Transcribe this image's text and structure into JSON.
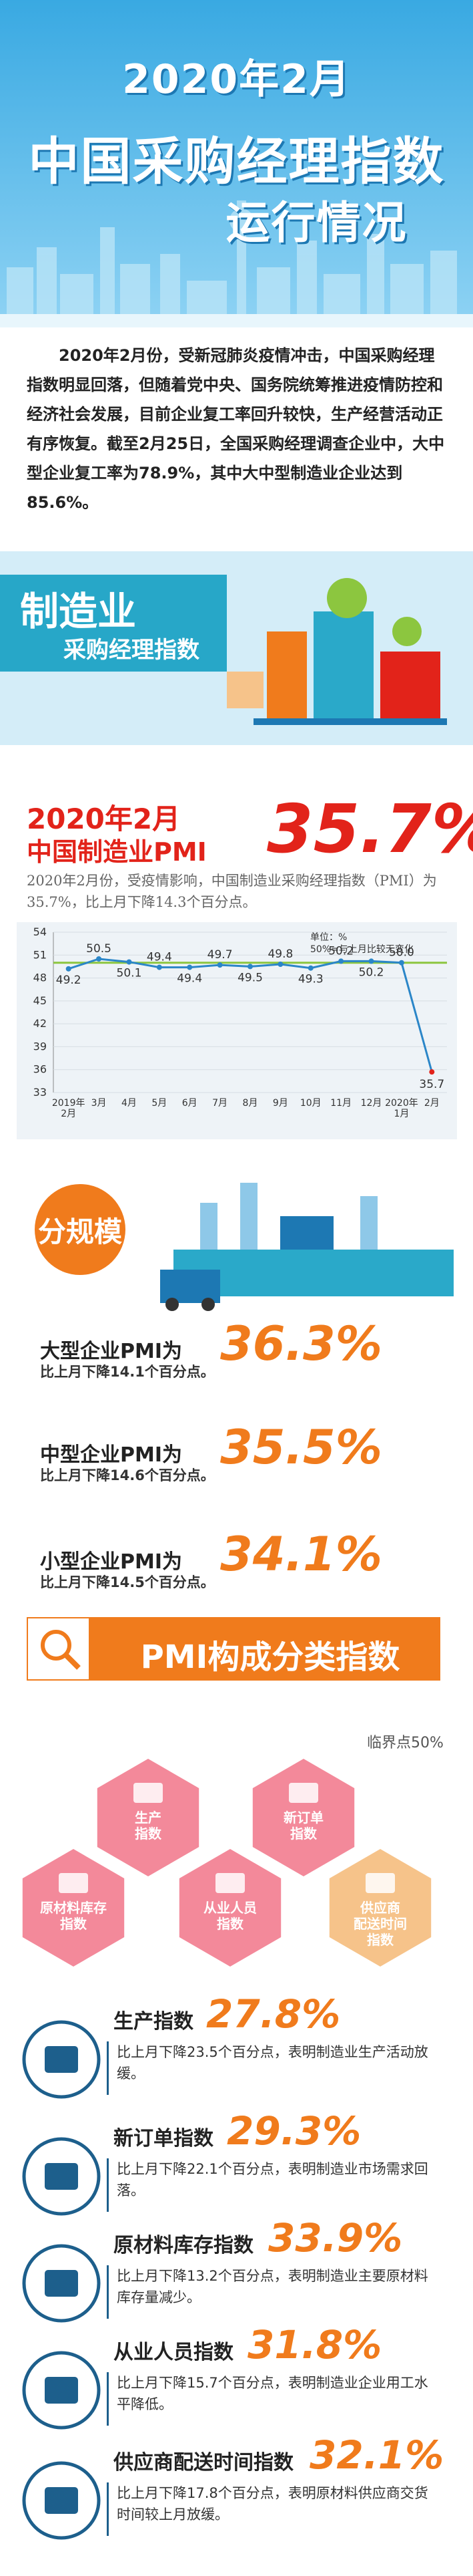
{
  "header": {
    "line1": "2020年2月",
    "line2": "中国采购经理指数",
    "line3": "运行情况"
  },
  "intro": "2020年2月份，受新冠肺炎疫情冲击，中国采购经理指数明显回落，但随着党中央、国务院统筹推进疫情防控和经济社会发展，目前企业复工率回升较快，生产经营活动正有序恢复。截至2月25日，全国采购经理调查企业中，大中型企业复工率为78.9%，其中大中型制造业企业达到85.6%。",
  "banner": {
    "title": "制造业",
    "subtitle": "采购经理指数"
  },
  "pmi": {
    "date": "2020年2月",
    "label": "中国制造业PMI",
    "value": "35.7%",
    "description": "2020年2月份，受疫情影响，中国制造业采购经理指数（PMI）为35.7%，比上月下降14.3个百分点。"
  },
  "chart_data": {
    "type": "line",
    "unit_note": "单位：%",
    "reference_note": "50%=与上月比较无变化",
    "reference": 50,
    "categories": [
      "2019年\n2月",
      "3月",
      "4月",
      "5月",
      "6月",
      "7月",
      "8月",
      "9月",
      "10月",
      "11月",
      "12月",
      "2020年\n1月",
      "2月"
    ],
    "values": [
      49.2,
      50.5,
      50.1,
      49.4,
      49.4,
      49.7,
      49.5,
      49.8,
      49.3,
      50.2,
      50.2,
      50.0,
      35.7
    ],
    "value_labels": [
      "49.2",
      "50.5",
      "50.1",
      "49.4",
      "49.4",
      "49.7",
      "49.5",
      "49.8",
      "49.3",
      "50.2",
      "50.2",
      "50.0",
      "35.7"
    ],
    "color": "#2b86c8",
    "last_color": "#e2231a",
    "ylim": [
      33,
      54
    ],
    "yticks": [
      33,
      36,
      39,
      42,
      45,
      48,
      51,
      54
    ],
    "grid": true
  },
  "scale": {
    "title": "分规模",
    "items": [
      {
        "label": "大型企业PMI为",
        "value": "36.3%",
        "note": "比上月下降14.1个百分点。"
      },
      {
        "label": "中型企业PMI为",
        "value": "35.5%",
        "note": "比上月下降14.6个百分点。"
      },
      {
        "label": "小型企业PMI为",
        "value": "34.1%",
        "note": "比上月下降14.5个百分点。"
      }
    ]
  },
  "components": {
    "title": "PMI构成分类指数",
    "critical": "临界点50%",
    "hexagons": [
      "生产\n指数",
      "新订单\n指数",
      "原材料库存\n指数",
      "从业人员\n指数",
      "供应商\n配送时间\n指数"
    ],
    "items": [
      {
        "label": "生产指数",
        "value": "27.8%",
        "note": "比上月下降23.5个百分点，表明制造业生产活动放缓。"
      },
      {
        "label": "新订单指数",
        "value": "29.3%",
        "note": "比上月下降22.1个百分点，表明制造业市场需求回落。"
      },
      {
        "label": "原材料库存指数",
        "value": "33.9%",
        "note": "比上月下降13.2个百分点，表明制造业主要原材料库存量减少。"
      },
      {
        "label": "从业人员指数",
        "value": "31.8%",
        "note": "比上月下降15.7个百分点，表明制造业企业用工水平降低。"
      },
      {
        "label": "供应商配送时间指数",
        "value": "32.1%",
        "note": "比上月下降17.8个百分点，表明原材料供应商交货时间较上月放缓。"
      }
    ]
  }
}
